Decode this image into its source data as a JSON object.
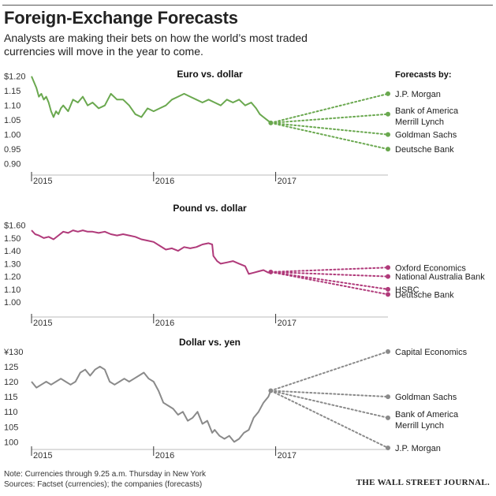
{
  "header": {
    "title": "Foreign-Exchange Forecasts",
    "subtitle": "Analysts are making their bets on how the world’s most traded currencies will move in the year to come."
  },
  "footer": {
    "note": "Note: Currencies through 9.25 a.m. Thursday in New York",
    "sources": "Sources: Factset (currencies); the companies (forecasts)",
    "brand": "THE WALL STREET JOURNAL."
  },
  "forecasts_heading": "Forecasts by:",
  "chart_data": [
    {
      "type": "line",
      "title": "Euro vs. dollar",
      "color": "#6aa84f",
      "x_ticks": [
        "2015",
        "2016",
        "2017"
      ],
      "y_ticks": [
        1.2,
        1.15,
        1.1,
        1.05,
        1.0,
        0.95,
        0.9
      ],
      "y_tick_labels": [
        "$1.20",
        "1.15",
        "1.10",
        "1.05",
        "1.00",
        "0.95",
        "0.90"
      ],
      "ylim": [
        0.88,
        1.21
      ],
      "history": {
        "x": [
          2015.0,
          2015.02,
          2015.04,
          2015.06,
          2015.08,
          2015.1,
          2015.12,
          2015.14,
          2015.16,
          2015.18,
          2015.2,
          2015.22,
          2015.24,
          2015.26,
          2015.3,
          2015.34,
          2015.38,
          2015.42,
          2015.46,
          2015.5,
          2015.55,
          2015.6,
          2015.65,
          2015.7,
          2015.75,
          2015.8,
          2015.85,
          2015.9,
          2015.95,
          2016.0,
          2016.05,
          2016.1,
          2016.15,
          2016.2,
          2016.25,
          2016.3,
          2016.35,
          2016.4,
          2016.45,
          2016.5,
          2016.55,
          2016.6,
          2016.65,
          2016.7,
          2016.75,
          2016.8,
          2016.84,
          2016.87,
          2016.9,
          2016.93,
          2016.96
        ],
        "y": [
          1.2,
          1.18,
          1.16,
          1.13,
          1.14,
          1.12,
          1.13,
          1.11,
          1.08,
          1.06,
          1.08,
          1.07,
          1.09,
          1.1,
          1.08,
          1.12,
          1.11,
          1.13,
          1.1,
          1.11,
          1.09,
          1.1,
          1.14,
          1.12,
          1.12,
          1.1,
          1.07,
          1.06,
          1.09,
          1.08,
          1.09,
          1.1,
          1.12,
          1.13,
          1.14,
          1.13,
          1.12,
          1.11,
          1.12,
          1.11,
          1.1,
          1.12,
          1.11,
          1.12,
          1.1,
          1.11,
          1.09,
          1.07,
          1.06,
          1.05,
          1.04
        ]
      },
      "forecast_start": {
        "x": 2016.96,
        "y": 1.04
      },
      "forecast_end_x": 2017.92,
      "forecasts": [
        {
          "name": "J.P. Morgan",
          "value": 1.14
        },
        {
          "name": "Bank of America Merrill Lynch",
          "value": 1.07
        },
        {
          "name": "Goldman Sachs",
          "value": 1.0
        },
        {
          "name": "Deutsche Bank",
          "value": 0.95
        }
      ]
    },
    {
      "type": "line",
      "title": "Pound vs. dollar",
      "color": "#b03a7a",
      "x_ticks": [
        "2015",
        "2016",
        "2017"
      ],
      "y_ticks": [
        1.6,
        1.5,
        1.4,
        1.3,
        1.2,
        1.1,
        1.0
      ],
      "y_tick_labels": [
        "$1.60",
        "1.50",
        "1.40",
        "1.30",
        "1.20",
        "1.10",
        "1.00"
      ],
      "ylim": [
        0.97,
        1.61
      ],
      "history": {
        "x": [
          2015.0,
          2015.03,
          2015.06,
          2015.1,
          2015.14,
          2015.18,
          2015.22,
          2015.26,
          2015.3,
          2015.34,
          2015.38,
          2015.42,
          2015.46,
          2015.5,
          2015.55,
          2015.6,
          2015.65,
          2015.7,
          2015.75,
          2015.8,
          2015.85,
          2015.9,
          2015.95,
          2016.0,
          2016.05,
          2016.1,
          2016.15,
          2016.2,
          2016.25,
          2016.3,
          2016.35,
          2016.4,
          2016.45,
          2016.48,
          2016.49,
          2016.52,
          2016.55,
          2016.6,
          2016.65,
          2016.7,
          2016.75,
          2016.78,
          2016.82,
          2016.86,
          2016.9,
          2016.94,
          2016.96
        ],
        "y": [
          1.56,
          1.53,
          1.52,
          1.5,
          1.51,
          1.49,
          1.52,
          1.55,
          1.54,
          1.56,
          1.55,
          1.56,
          1.55,
          1.55,
          1.54,
          1.55,
          1.53,
          1.52,
          1.53,
          1.52,
          1.51,
          1.49,
          1.48,
          1.47,
          1.44,
          1.41,
          1.42,
          1.4,
          1.43,
          1.42,
          1.43,
          1.45,
          1.46,
          1.45,
          1.36,
          1.32,
          1.3,
          1.31,
          1.32,
          1.3,
          1.28,
          1.22,
          1.23,
          1.24,
          1.25,
          1.23,
          1.24
        ]
      },
      "forecast_start": {
        "x": 2016.96,
        "y": 1.235
      },
      "forecast_end_x": 2017.92,
      "forecasts": [
        {
          "name": "Oxford Economics",
          "value": 1.27
        },
        {
          "name": "National Australia Bank",
          "value": 1.2
        },
        {
          "name": "HSBC",
          "value": 1.1
        },
        {
          "name": "Deutsche Bank",
          "value": 1.06
        }
      ]
    },
    {
      "type": "line",
      "title": "Dollar vs. yen",
      "color": "#8a8a8a",
      "x_ticks": [
        "2015",
        "2016",
        "2017"
      ],
      "y_ticks": [
        130,
        125,
        120,
        115,
        110,
        105,
        100
      ],
      "y_tick_labels": [
        "¥130",
        "125",
        "120",
        "115",
        "110",
        "105",
        "100"
      ],
      "ylim": [
        98,
        131
      ],
      "history": {
        "x": [
          2015.0,
          2015.04,
          2015.08,
          2015.12,
          2015.16,
          2015.2,
          2015.24,
          2015.28,
          2015.32,
          2015.36,
          2015.4,
          2015.44,
          2015.48,
          2015.52,
          2015.56,
          2015.6,
          2015.64,
          2015.68,
          2015.72,
          2015.76,
          2015.8,
          2015.84,
          2015.88,
          2015.92,
          2015.96,
          2016.0,
          2016.04,
          2016.08,
          2016.12,
          2016.16,
          2016.2,
          2016.24,
          2016.28,
          2016.32,
          2016.36,
          2016.4,
          2016.44,
          2016.48,
          2016.5,
          2016.54,
          2016.58,
          2016.62,
          2016.66,
          2016.7,
          2016.74,
          2016.78,
          2016.82,
          2016.86,
          2016.9,
          2016.94,
          2016.96
        ],
        "y": [
          120,
          118,
          119,
          120,
          119,
          120,
          121,
          120,
          119,
          120,
          123,
          124,
          122,
          124,
          125,
          124,
          120,
          119,
          120,
          121,
          120,
          121,
          122,
          123,
          121,
          120,
          117,
          113,
          112,
          111,
          109,
          110,
          107,
          108,
          110,
          106,
          107,
          103,
          104,
          102,
          101,
          102,
          100,
          101,
          103,
          104,
          108,
          110,
          113,
          115,
          117
        ]
      },
      "forecast_start": {
        "x": 2016.96,
        "y": 117
      },
      "forecast_end_x": 2017.92,
      "forecasts": [
        {
          "name": "Capital Economics",
          "value": 130
        },
        {
          "name": "Goldman Sachs",
          "value": 115
        },
        {
          "name": "Bank of America Merrill Lynch",
          "value": 108
        },
        {
          "name": "J.P. Morgan",
          "value": 98
        }
      ]
    }
  ]
}
